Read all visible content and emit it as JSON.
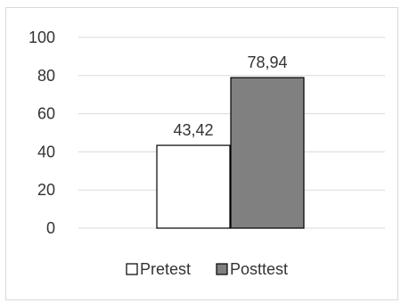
{
  "chart_data": {
    "type": "bar",
    "categories": [
      "Pretest",
      "Posttest"
    ],
    "values": [
      43.42,
      78.94
    ],
    "data_labels": [
      "43,42",
      "78,94"
    ],
    "ylim": [
      0,
      100
    ],
    "yticks": [
      0,
      20,
      40,
      60,
      80,
      100
    ],
    "grid": true,
    "legend_position": "bottom",
    "legend": [
      {
        "label": "Pretest",
        "color": "#ffffff"
      },
      {
        "label": "Posttest",
        "color": "#808080"
      }
    ],
    "bar_colors": [
      "#ffffff",
      "#808080"
    ],
    "bar_stroke": "#000000",
    "grid_color": "#d9d9d9"
  }
}
